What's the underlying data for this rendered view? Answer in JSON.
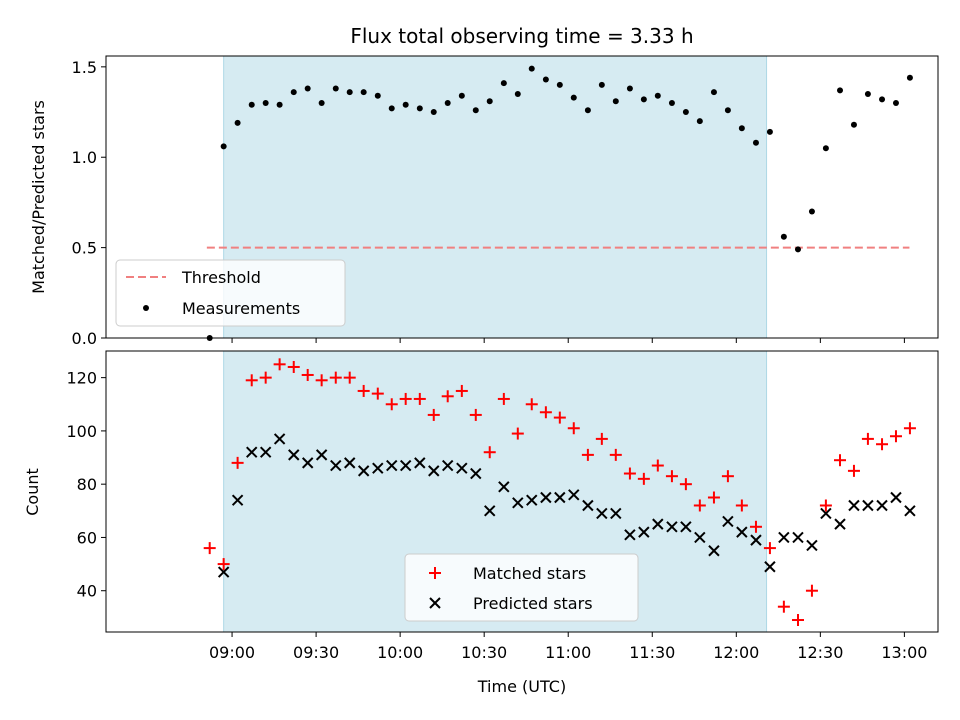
{
  "colors": {
    "shade": "#add8e6",
    "threshold": "#f08080",
    "matched": "#ff0000",
    "predicted": "#000000",
    "measurements": "#000000"
  },
  "chart_data": [
    {
      "type": "scatter",
      "title": "Flux total observing time = 3.33 h",
      "xlabel": "",
      "ylabel": "Matched/Predicted stars",
      "xlim_minutes": [
        8.25,
        13.2
      ],
      "ylim": [
        0,
        1.56
      ],
      "yticks": [
        0.0,
        0.5,
        1.0,
        1.5
      ],
      "ytick_labels": [
        "0.0",
        "0.5",
        "1.0",
        "1.5"
      ],
      "shaded_region": {
        "x_start": 8.95,
        "x_end": 12.18
      },
      "threshold": {
        "name": "Threshold",
        "value": 0.5,
        "x_start": 8.85,
        "x_end": 13.03
      },
      "legend": [
        "Threshold",
        "Measurements"
      ],
      "legend_position": "lower-left",
      "series": [
        {
          "name": "Measurements",
          "x": [
            8.867,
            8.95,
            9.033,
            9.117,
            9.2,
            9.283,
            9.367,
            9.45,
            9.533,
            9.617,
            9.7,
            9.783,
            9.867,
            9.95,
            10.033,
            10.117,
            10.2,
            10.283,
            10.367,
            10.45,
            10.533,
            10.617,
            10.7,
            10.783,
            10.867,
            10.95,
            11.033,
            11.117,
            11.2,
            11.283,
            11.367,
            11.45,
            11.533,
            11.617,
            11.7,
            11.783,
            11.867,
            11.95,
            12.033,
            12.117,
            12.2,
            12.283,
            12.367,
            12.45,
            12.533,
            12.617,
            12.7,
            12.783,
            12.867,
            12.95,
            13.033
          ],
          "y": [
            0.0,
            1.06,
            1.19,
            1.29,
            1.3,
            1.29,
            1.36,
            1.38,
            1.3,
            1.38,
            1.36,
            1.36,
            1.34,
            1.27,
            1.29,
            1.27,
            1.25,
            1.3,
            1.34,
            1.26,
            1.31,
            1.41,
            1.35,
            1.49,
            1.43,
            1.4,
            1.33,
            1.26,
            1.4,
            1.31,
            1.38,
            1.32,
            1.34,
            1.3,
            1.25,
            1.2,
            1.36,
            1.26,
            1.16,
            1.08,
            1.14,
            0.56,
            0.49,
            0.7,
            1.05,
            1.37,
            1.18,
            1.35,
            1.32,
            1.3,
            1.44
          ]
        }
      ]
    },
    {
      "type": "scatter",
      "title": "",
      "xlabel": "Time (UTC)",
      "ylabel": "Count",
      "xlim_minutes": [
        8.25,
        13.2
      ],
      "ylim": [
        24.5,
        130
      ],
      "yticks": [
        40,
        60,
        80,
        100,
        120
      ],
      "ytick_labels": [
        "40",
        "60",
        "80",
        "100",
        "120"
      ],
      "xticks": [
        9.0,
        9.5,
        10.0,
        10.5,
        11.0,
        11.5,
        12.0,
        12.5,
        13.0
      ],
      "xtick_labels": [
        "09:00",
        "09:30",
        "10:00",
        "10:30",
        "11:00",
        "11:30",
        "12:00",
        "12:30",
        "13:00"
      ],
      "shaded_region": {
        "x_start": 8.95,
        "x_end": 12.18
      },
      "legend": [
        "Matched stars",
        "Predicted stars"
      ],
      "legend_position": "lower-center",
      "series": [
        {
          "name": "Matched stars",
          "marker": "+",
          "x": [
            8.867,
            8.95,
            9.033,
            9.117,
            9.2,
            9.283,
            9.367,
            9.45,
            9.533,
            9.617,
            9.7,
            9.783,
            9.867,
            9.95,
            10.033,
            10.117,
            10.2,
            10.283,
            10.367,
            10.45,
            10.533,
            10.617,
            10.7,
            10.783,
            10.867,
            10.95,
            11.033,
            11.117,
            11.2,
            11.283,
            11.367,
            11.45,
            11.533,
            11.617,
            11.7,
            11.783,
            11.867,
            11.95,
            12.033,
            12.117,
            12.2,
            12.283,
            12.367,
            12.45,
            12.533,
            12.617,
            12.7,
            12.783,
            12.867,
            12.95,
            13.033
          ],
          "y": [
            56,
            50,
            88,
            119,
            120,
            125,
            124,
            121,
            119,
            120,
            120,
            115,
            114,
            110,
            112,
            112,
            106,
            113,
            115,
            106,
            92,
            112,
            99,
            110,
            107,
            105,
            101,
            91,
            97,
            91,
            84,
            82,
            87,
            83,
            80,
            72,
            75,
            83,
            72,
            64,
            56,
            34,
            29,
            40,
            72,
            89,
            85,
            97,
            95,
            98,
            101
          ]
        },
        {
          "name": "Predicted stars",
          "marker": "x",
          "x": [
            8.95,
            9.033,
            9.117,
            9.2,
            9.283,
            9.367,
            9.45,
            9.533,
            9.617,
            9.7,
            9.783,
            9.867,
            9.95,
            10.033,
            10.117,
            10.2,
            10.283,
            10.367,
            10.45,
            10.533,
            10.617,
            10.7,
            10.783,
            10.867,
            10.95,
            11.033,
            11.117,
            11.2,
            11.283,
            11.367,
            11.45,
            11.533,
            11.617,
            11.7,
            11.783,
            11.867,
            11.95,
            12.033,
            12.117,
            12.2,
            12.283,
            12.367,
            12.45,
            12.533,
            12.617,
            12.7,
            12.783,
            12.867,
            12.95,
            13.033
          ],
          "y": [
            47,
            74,
            92,
            92,
            97,
            91,
            88,
            91,
            87,
            88,
            85,
            86,
            87,
            87,
            88,
            85,
            87,
            86,
            84,
            70,
            79,
            73,
            74,
            75,
            75,
            76,
            72,
            69,
            69,
            61,
            62,
            65,
            64,
            64,
            60,
            55,
            66,
            62,
            59,
            49,
            60,
            60,
            57,
            69,
            65,
            72,
            72,
            72,
            75,
            70
          ]
        }
      ]
    }
  ]
}
